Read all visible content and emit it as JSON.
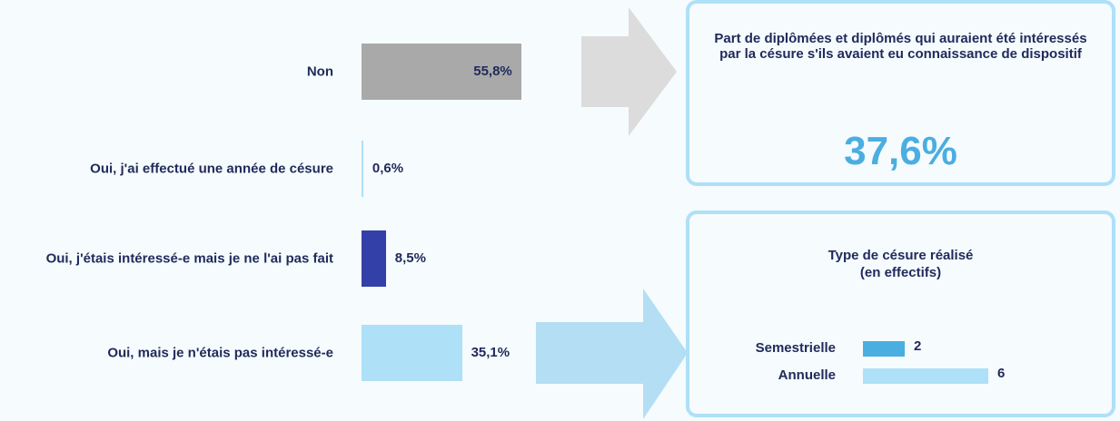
{
  "chart_data": [
    {
      "type": "bar",
      "categories": [
        "Non",
        "Oui, j'ai effectué une année de césure",
        "Oui, j'étais intéressé-e mais je ne l'ai pas fait",
        "Oui, mais je n'étais pas intéressé-e"
      ],
      "values": [
        55.8,
        0.6,
        8.5,
        35.1
      ],
      "value_labels": [
        "55,8%",
        "0,6%",
        "8,5%",
        "35,1%"
      ],
      "colors": [
        "#a9a9a9",
        "#aee0f8",
        "#3340a8",
        "#aee0f8"
      ]
    },
    {
      "type": "bar",
      "title": "Type de césure réalisé",
      "subtitle": "(en effectifs)",
      "categories": [
        "Semestrielle",
        "Annuelle"
      ],
      "values": [
        2,
        6
      ],
      "colors": [
        "#4aaee0",
        "#aee0f8"
      ]
    }
  ],
  "kpi": {
    "title": "Part de diplômées et diplômés qui auraient été intéressés par la césure s'ils avaient eu connaissance de dispositif",
    "value": "37,6%"
  }
}
